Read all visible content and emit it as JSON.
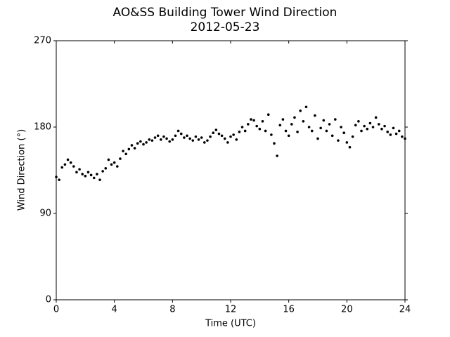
{
  "chart_data": {
    "type": "scatter",
    "title": "AO&SS Building Tower Wind Direction",
    "subtitle": "2012-05-23",
    "x_label": "Time (UTC)",
    "y_label": "Wind Direction (°)",
    "color": "#000000",
    "xlim": [
      0,
      24
    ],
    "xticks": [
      0,
      4,
      8,
      12,
      16,
      20,
      24
    ],
    "ylim": [
      0,
      270
    ],
    "yticks": [
      0,
      90,
      180,
      270
    ],
    "x": [
      0,
      0.2,
      0.4,
      0.6,
      0.8,
      1,
      1.2,
      1.4,
      1.6,
      1.8,
      2,
      2.2,
      2.4,
      2.6,
      2.8,
      3,
      3.2,
      3.4,
      3.6,
      3.8,
      4,
      4.2,
      4.4,
      4.6,
      4.8,
      5,
      5.2,
      5.4,
      5.6,
      5.8,
      6,
      6.2,
      6.4,
      6.6,
      6.8,
      7,
      7.2,
      7.4,
      7.6,
      7.8,
      8,
      8.2,
      8.4,
      8.6,
      8.8,
      9,
      9.2,
      9.4,
      9.6,
      9.8,
      10,
      10.2,
      10.4,
      10.6,
      10.8,
      11,
      11.2,
      11.4,
      11.6,
      11.8,
      12,
      12.2,
      12.4,
      12.6,
      12.8,
      13,
      13.2,
      13.4,
      13.6,
      13.8,
      14,
      14.2,
      14.4,
      14.6,
      14.8,
      15,
      15.2,
      15.4,
      15.6,
      15.8,
      16,
      16.2,
      16.4,
      16.6,
      16.8,
      17,
      17.2,
      17.4,
      17.6,
      17.8,
      18,
      18.2,
      18.4,
      18.6,
      18.8,
      19,
      19.2,
      19.4,
      19.6,
      19.8,
      20,
      20.2,
      20.4,
      20.6,
      20.8,
      21,
      21.2,
      21.4,
      21.6,
      21.8,
      22,
      22.2,
      22.4,
      22.6,
      22.8,
      23,
      23.2,
      23.4,
      23.6,
      23.8,
      24
    ],
    "values": [
      128,
      125,
      138,
      141,
      146,
      143,
      139,
      133,
      136,
      131,
      129,
      133,
      130,
      127,
      131,
      125,
      134,
      137,
      146,
      141,
      143,
      139,
      147,
      155,
      152,
      157,
      161,
      158,
      163,
      165,
      162,
      164,
      167,
      166,
      169,
      171,
      167,
      170,
      168,
      165,
      167,
      171,
      176,
      173,
      169,
      171,
      168,
      166,
      170,
      167,
      169,
      164,
      166,
      170,
      174,
      177,
      173,
      171,
      168,
      164,
      170,
      172,
      167,
      175,
      180,
      176,
      183,
      188,
      187,
      181,
      178,
      186,
      176,
      193,
      172,
      163,
      150,
      182,
      188,
      176,
      171,
      183,
      190,
      175,
      197,
      186,
      201,
      180,
      176,
      192,
      168,
      179,
      187,
      176,
      183,
      171,
      188,
      166,
      180,
      174,
      164,
      159,
      170,
      182,
      186,
      176,
      181,
      178,
      184,
      180,
      190,
      183,
      178,
      181,
      175,
      172,
      179,
      173,
      176,
      170,
      168
    ]
  }
}
